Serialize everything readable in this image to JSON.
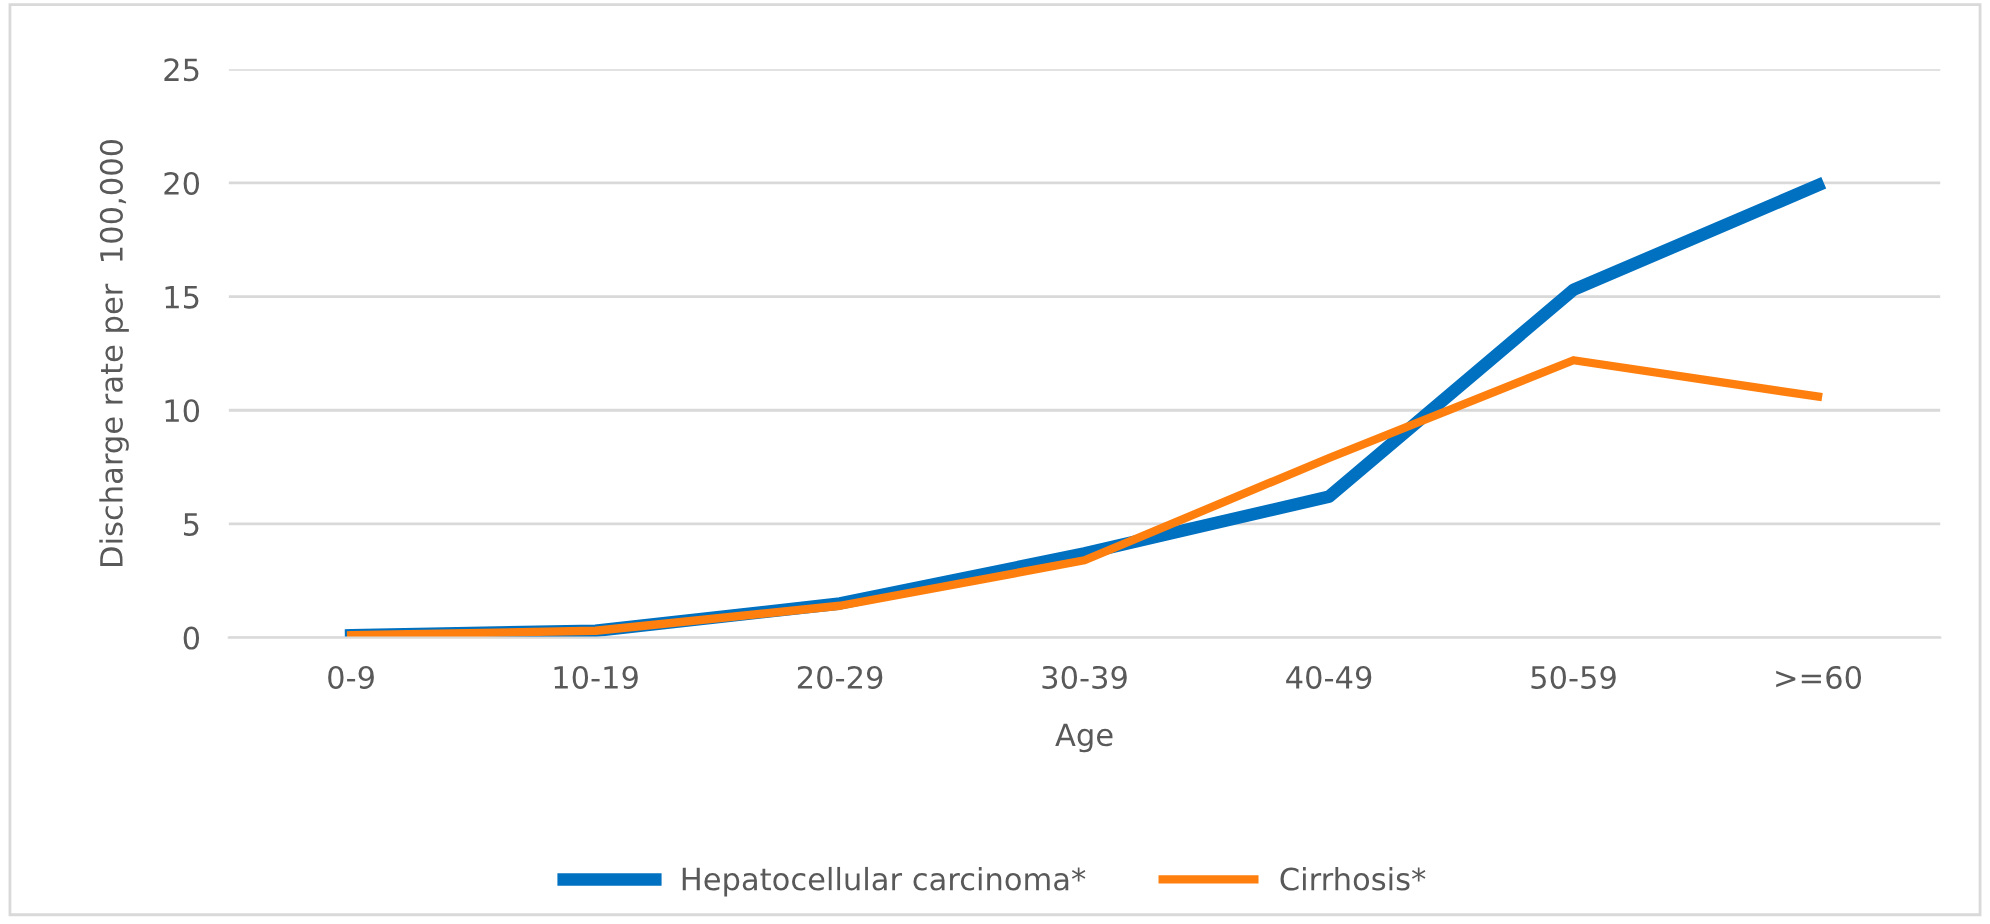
{
  "chart_data": {
    "type": "line",
    "xlabel": "Age",
    "ylabel": "Discharge rate per  100,000",
    "categories": [
      "0-9",
      "10-19",
      "20-29",
      "30-39",
      "40-49",
      "50-59",
      ">=60"
    ],
    "series": [
      {
        "name": "Hepatocellular carcinoma*",
        "color": "#0070c0",
        "values": [
          0.1,
          0.3,
          1.5,
          3.7,
          6.2,
          15.3,
          19.9
        ]
      },
      {
        "name": "Cirrhosis*",
        "color": "#ff7f0e",
        "values": [
          0.1,
          0.3,
          1.4,
          3.4,
          7.9,
          12.2,
          10.6
        ]
      }
    ],
    "ylim": [
      0,
      25
    ],
    "yticks": [
      0,
      5,
      10,
      15,
      20,
      25
    ],
    "grid": "y",
    "legend": "bottom",
    "marker": "none",
    "line_style": "solid"
  }
}
